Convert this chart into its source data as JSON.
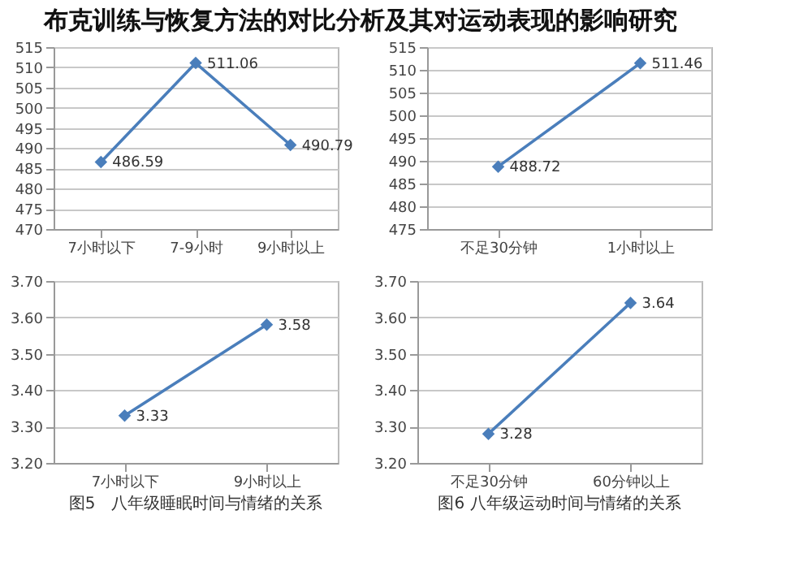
{
  "chart_data": [
    {
      "type": "line",
      "title": "布克训练与恢复方法的对比分析及其对运动表现的影响研究",
      "categories": [
        "7小时以下",
        "7-9小时",
        "9小时以上"
      ],
      "values": [
        486.59,
        511.06,
        490.79
      ],
      "color": "#4a7ebb",
      "ylim": [
        470,
        515
      ],
      "yticks": [
        470,
        475,
        480,
        485,
        490,
        495,
        500,
        505,
        510,
        515
      ],
      "grid": "y",
      "marker": "diamond",
      "data_labels": true
    },
    {
      "type": "line",
      "categories": [
        "不足30分钟",
        "1小时以上"
      ],
      "values": [
        488.72,
        511.46
      ],
      "color": "#4a7ebb",
      "ylim": [
        475,
        515
      ],
      "yticks": [
        475,
        480,
        485,
        490,
        495,
        500,
        505,
        510,
        515
      ],
      "grid": "y",
      "marker": "diamond",
      "data_labels": true
    },
    {
      "type": "line",
      "categories": [
        "7小时以下",
        "9小时以上"
      ],
      "values": [
        3.33,
        3.58
      ],
      "color": "#4a7ebb",
      "ylim": [
        3.2,
        3.7
      ],
      "yticks": [
        {
          "value": 3.2,
          "label": "3.20"
        },
        {
          "value": 3.3,
          "label": "3.30"
        },
        {
          "value": 3.4,
          "label": "3.40"
        },
        {
          "value": 3.5,
          "label": "3.50"
        },
        {
          "value": 3.6,
          "label": "3.60"
        },
        {
          "value": 3.7,
          "label": "3.70"
        }
      ],
      "grid": "y",
      "marker": "diamond",
      "data_labels": true,
      "annotations": [
        "图5　八年级睡眠时间与情绪的关系"
      ]
    },
    {
      "type": "line",
      "categories": [
        "不足30分钟",
        "60分钟以上"
      ],
      "values": [
        3.28,
        3.64
      ],
      "color": "#4a7ebb",
      "ylim": [
        3.2,
        3.7
      ],
      "yticks": [
        {
          "value": 3.2,
          "label": "3.20"
        },
        {
          "value": 3.3,
          "label": "3.30"
        },
        {
          "value": 3.4,
          "label": "3.40"
        },
        {
          "value": 3.5,
          "label": "3.50"
        },
        {
          "value": 3.6,
          "label": "3.60"
        },
        {
          "value": 3.7,
          "label": "3.70"
        }
      ],
      "grid": "y",
      "marker": "diamond",
      "data_labels": true,
      "annotations": [
        "图6 八年级运动时间与情绪的关系"
      ]
    }
  ]
}
